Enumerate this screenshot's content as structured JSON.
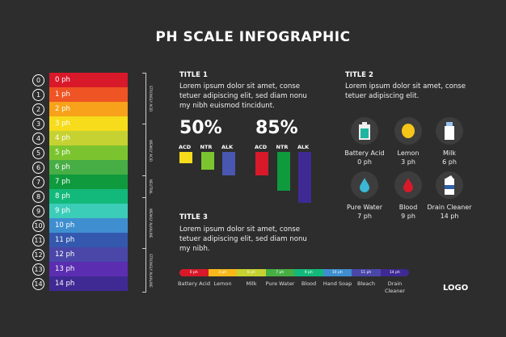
{
  "title": "PH SCALE INFOGRAPHIC",
  "scale": [
    {
      "n": "0",
      "label": "0 ph",
      "color": "#d8192a"
    },
    {
      "n": "1",
      "label": "1 ph",
      "color": "#ee5424"
    },
    {
      "n": "2",
      "label": "2 ph",
      "color": "#f7a21a"
    },
    {
      "n": "3",
      "label": "3 ph",
      "color": "#f6dc1b"
    },
    {
      "n": "4",
      "label": "4 ph",
      "color": "#c6d231"
    },
    {
      "n": "5",
      "label": "5 ph",
      "color": "#7cc42f"
    },
    {
      "n": "6",
      "label": "6 ph",
      "color": "#47ae45"
    },
    {
      "n": "7",
      "label": "7 ph",
      "color": "#0f9a3d"
    },
    {
      "n": "8",
      "label": "8 ph",
      "color": "#13b97a"
    },
    {
      "n": "9",
      "label": "9 ph",
      "color": "#3ccdb9"
    },
    {
      "n": "10",
      "label": "10 ph",
      "color": "#3f8fd0"
    },
    {
      "n": "11",
      "label": "11 ph",
      "color": "#3458ae"
    },
    {
      "n": "12",
      "label": "12 ph",
      "color": "#4a47a8"
    },
    {
      "n": "13",
      "label": "13 ph",
      "color": "#5b2db0"
    },
    {
      "n": "14",
      "label": "14 ph",
      "color": "#3f2a93"
    }
  ],
  "side_labels": [
    "STRONGLY ACID",
    "WEAKLY ACID",
    "NEUTRAL",
    "WEAKLY ALKALINE",
    "STRONGLY ALKALINE"
  ],
  "section1": {
    "title": "TITLE 1",
    "text": "Lorem ipsum dolor sit amet, conse tetuer adipiscing elit, sed diam nonu my nibh euismod tincidunt.",
    "groups": [
      {
        "percent": "50%",
        "bars": [
          {
            "label": "ACD",
            "value": 1,
            "color": "#f6dc1b"
          },
          {
            "label": "NTR",
            "value": 1.6,
            "color": "#7cc42f"
          },
          {
            "label": "ALK",
            "value": 2.1,
            "color": "#4a57b0"
          }
        ]
      },
      {
        "percent": "85%",
        "bars": [
          {
            "label": "ACD",
            "value": 2.1,
            "color": "#d8192a"
          },
          {
            "label": "NTR",
            "value": 3.4,
            "color": "#0f9a3d"
          },
          {
            "label": "ALK",
            "value": 4.5,
            "color": "#3f2a93"
          }
        ]
      }
    ]
  },
  "section2": {
    "title": "TITLE 2",
    "text": "Lorem ipsum dolor sit amet, conse tetuer adipiscing elit.",
    "items": [
      {
        "name": "Battery Acid",
        "ph": "0 ph",
        "icon": "battery-icon"
      },
      {
        "name": "Lemon",
        "ph": "3 ph",
        "icon": "lemon-icon"
      },
      {
        "name": "Milk",
        "ph": "6 ph",
        "icon": "milk-icon"
      },
      {
        "name": "Pure Water",
        "ph": "7 ph",
        "icon": "water-drop-icon"
      },
      {
        "name": "Blood",
        "ph": "9 ph",
        "icon": "blood-drop-icon"
      },
      {
        "name": "Drain Cleaner",
        "ph": "14 ph",
        "icon": "drain-cleaner-icon"
      }
    ]
  },
  "section3": {
    "title": "TITLE 3",
    "text": "Lorem ipsum dolor sit amet, conse tetuer adipiscing elit, sed diam nonu my nibh.",
    "segments": [
      {
        "ph": "0 ph",
        "name": "Battery Acid",
        "color": "#d8192a"
      },
      {
        "ph": "3 ph",
        "name": "Lemon",
        "color": "#f7b81a"
      },
      {
        "ph": "6 ph",
        "name": "Milk",
        "color": "#c6d231"
      },
      {
        "ph": "7 ph",
        "name": "Pure Water",
        "color": "#47ae45"
      },
      {
        "ph": "9 ph",
        "name": "Blood",
        "color": "#13b97a"
      },
      {
        "ph": "10 ph",
        "name": "Hand Soap",
        "color": "#3f8fd0"
      },
      {
        "ph": "11 ph",
        "name": "Bleach",
        "color": "#4a47a8"
      },
      {
        "ph": "14 ph",
        "name": "Drain Cleaner",
        "color": "#3f2a93"
      }
    ]
  },
  "logo": "LOGO"
}
